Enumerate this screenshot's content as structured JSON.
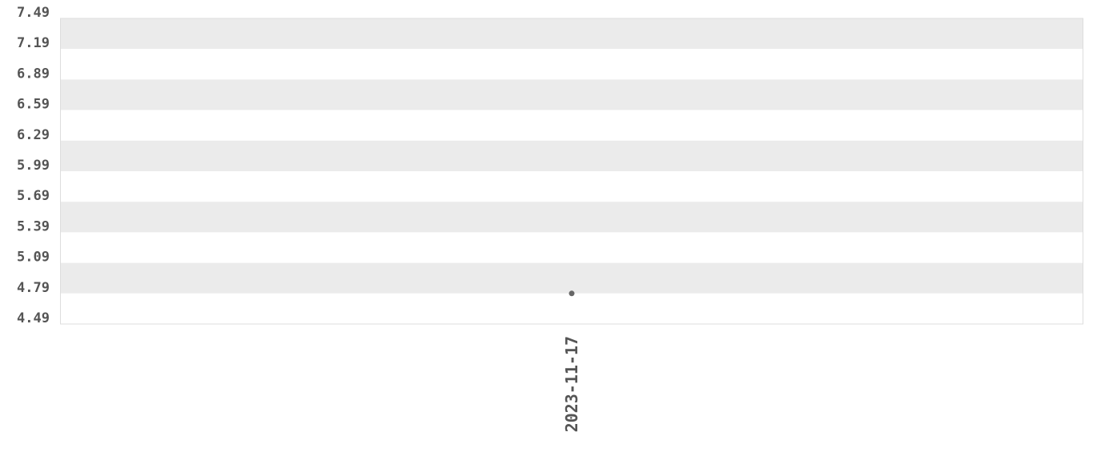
{
  "chart_data": {
    "type": "scatter",
    "title": "",
    "xlabel": "",
    "ylabel": "",
    "x_categories": [
      "2023-11-17"
    ],
    "series": [
      {
        "x": [
          "2023-11-17"
        ],
        "y": [
          4.79
        ]
      }
    ],
    "ylim": [
      4.49,
      7.49
    ],
    "y_ticks": [
      "4.49",
      "4.79",
      "5.09",
      "5.39",
      "5.69",
      "5.99",
      "6.29",
      "6.59",
      "6.89",
      "7.19",
      "7.49"
    ],
    "grid": "alternating horizontal bands",
    "legend": "none",
    "colors": {
      "band": "#ebebeb",
      "point": "#666666",
      "text": "#555555",
      "border": "#dddddd"
    }
  }
}
